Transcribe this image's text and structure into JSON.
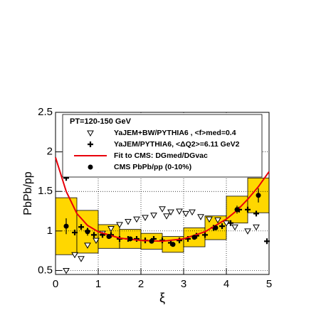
{
  "chart_data": {
    "type": "scatter",
    "x_label": "ξ",
    "y_label": "PbPb/pp",
    "xlim": [
      0,
      5
    ],
    "ylim": [
      0.45,
      2.5
    ],
    "xticks": [
      0,
      1,
      2,
      3,
      4,
      5
    ],
    "yticks": [
      0.5,
      1,
      1.5,
      2,
      2.5
    ],
    "grid": true,
    "legend_title": "PT=120-150 GeV",
    "series": [
      {
        "name": "YaJEM+BW/PYTHIA6 , <f>med=0.4",
        "marker": "triangle",
        "color": "#000000",
        "x": [
          0.25,
          0.45,
          0.6,
          0.75,
          0.95,
          1.1,
          1.3,
          1.5,
          1.7,
          1.9,
          2.1,
          2.3,
          2.5,
          2.6,
          2.7,
          2.9,
          3.05,
          3.2,
          3.4,
          3.6,
          3.8,
          4.0,
          4.2,
          4.5,
          4.7
        ],
        "values": [
          0.5,
          0.7,
          0.65,
          0.82,
          0.88,
          0.97,
          1.03,
          1.08,
          1.12,
          1.15,
          1.17,
          1.2,
          1.28,
          1.19,
          1.24,
          1.25,
          1.22,
          1.24,
          1.18,
          1.15,
          1.14,
          1.1,
          1.05,
          1.0,
          1.05
        ]
      },
      {
        "name": "YaJEM/PYTHIA6, <ΔQ2>=6.11 GeV2",
        "marker": "cross",
        "color": "#000000",
        "x": [
          0.25,
          0.45,
          0.6,
          0.75,
          0.9,
          1.1,
          1.3,
          1.5,
          1.7,
          1.9,
          2.1,
          2.3,
          2.5,
          2.7,
          2.9,
          3.1,
          3.3,
          3.5,
          3.7,
          3.9,
          4.1,
          4.3,
          4.5,
          4.7,
          4.95
        ],
        "values": [
          1.67,
          0.98,
          1.05,
          1.0,
          0.95,
          0.95,
          0.95,
          0.9,
          0.9,
          0.9,
          0.88,
          0.9,
          0.88,
          0.85,
          0.88,
          0.9,
          0.94,
          0.95,
          1.04,
          1.06,
          1.1,
          1.27,
          1.27,
          1.22,
          0.87
        ]
      },
      {
        "name": "Fit to CMS: DGmed/DGvac",
        "marker": "line",
        "color": "#e8000b",
        "x": [
          0,
          0.25,
          0.5,
          0.75,
          1,
          1.5,
          2,
          2.5,
          3,
          3.5,
          4,
          4.25,
          4.5,
          4.75,
          5
        ],
        "values": [
          1.93,
          1.5,
          1.22,
          1.07,
          0.99,
          0.91,
          0.88,
          0.87,
          0.9,
          0.99,
          1.15,
          1.26,
          1.4,
          1.56,
          1.75
        ]
      },
      {
        "name": "CMS PbPb/pp (0-10%)",
        "marker": "circle",
        "color": "#000000",
        "box_color": "#ffd700",
        "box_halfwidth": 0.25,
        "x": [
          0.25,
          0.75,
          1.25,
          1.75,
          2.25,
          2.75,
          3.25,
          3.75,
          4.25,
          4.75
        ],
        "values": [
          1.06,
          0.99,
          0.93,
          0.9,
          0.87,
          0.83,
          0.92,
          1.04,
          1.27,
          1.45
        ],
        "stat": [
          0.1,
          0.05,
          0.03,
          0.02,
          0.02,
          0.02,
          0.02,
          0.03,
          0.05,
          0.09
        ],
        "syst": [
          0.36,
          0.27,
          0.15,
          0.12,
          0.1,
          0.1,
          0.12,
          0.15,
          0.17,
          0.22
        ]
      }
    ]
  }
}
